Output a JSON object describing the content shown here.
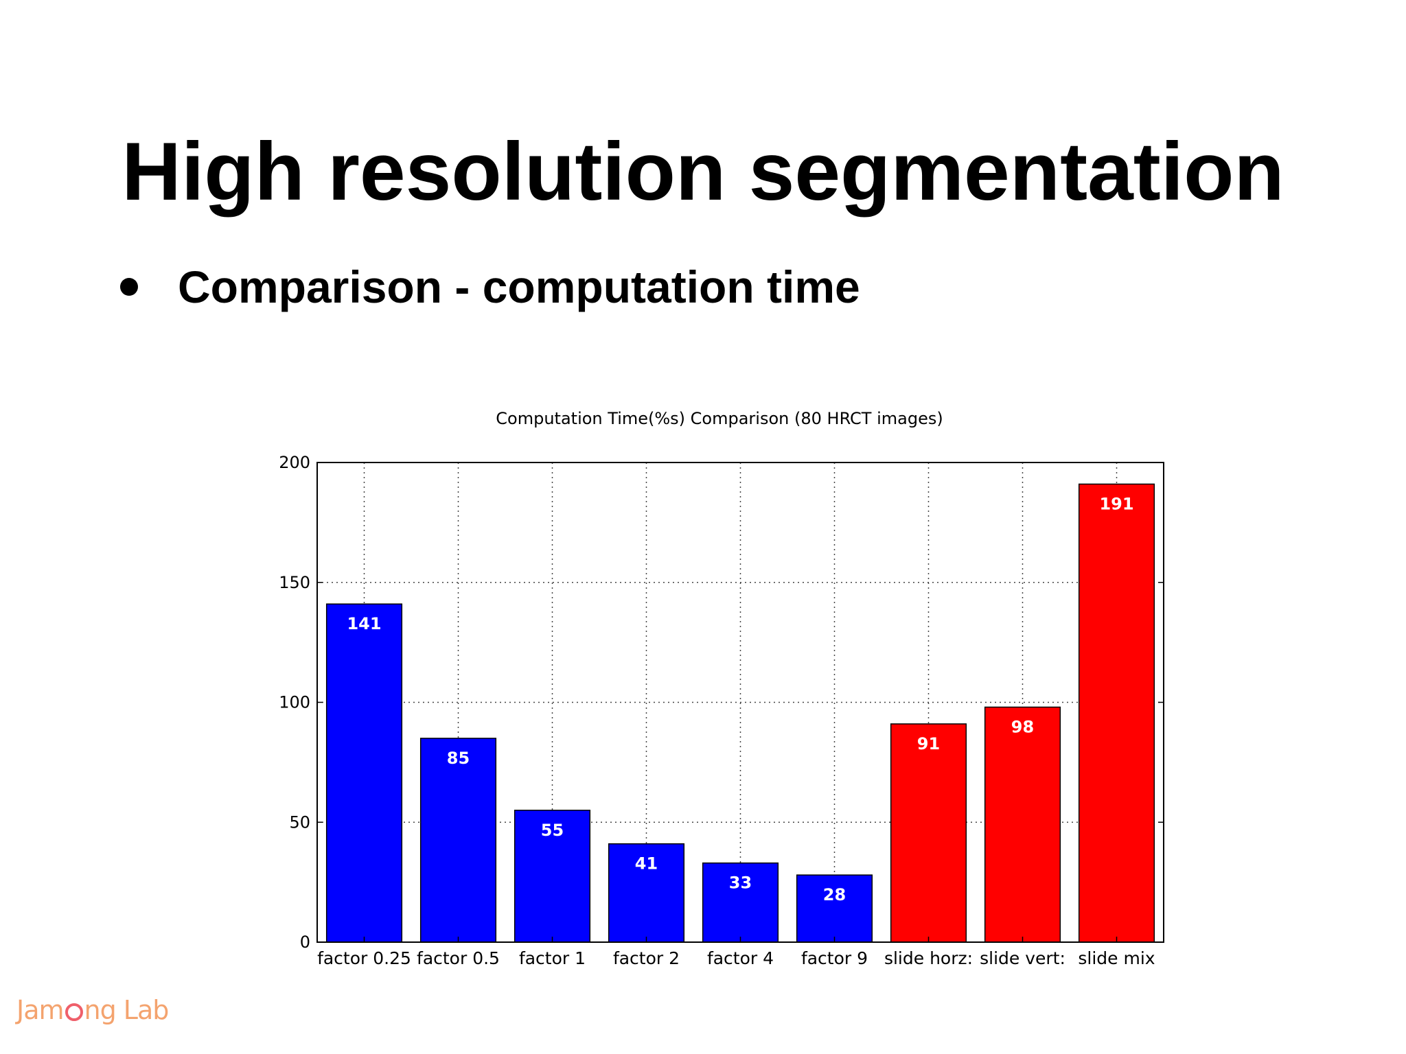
{
  "slide": {
    "title": "High resolution segmentation",
    "bullet": "Comparison - computation time",
    "logo": {
      "text_left": "Jam",
      "text_right": "ng Lab",
      "colors": {
        "text": "#f4a36e",
        "mark": "#ef5f6a"
      }
    }
  },
  "chart_data": {
    "type": "bar",
    "title": "Computation Time(%s) Comparison (80 HRCT images)",
    "xlabel": "",
    "ylabel": "",
    "categories": [
      "factor 0.25",
      "factor 0.5",
      "factor 1",
      "factor 2",
      "factor 4",
      "factor 9",
      "slide horz:",
      "slide vert:",
      "slide mix"
    ],
    "values": [
      141,
      85,
      55,
      41,
      33,
      28,
      91,
      98,
      191
    ],
    "value_labels": [
      "141",
      "85",
      "55",
      "41",
      "33",
      "28",
      "91",
      "98",
      "191"
    ],
    "bar_colors": [
      "#0000ff",
      "#0000ff",
      "#0000ff",
      "#0000ff",
      "#0000ff",
      "#0000ff",
      "#ff0000",
      "#ff0000",
      "#ff0000"
    ],
    "ylim": [
      0,
      200
    ],
    "yticks": [
      0,
      50,
      100,
      150,
      200
    ],
    "grid": true,
    "legend": "none"
  }
}
